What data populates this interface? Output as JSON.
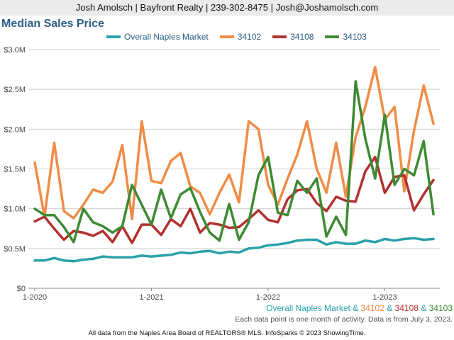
{
  "header": {
    "text": "Josh Amolsch | Bayfront Realty | 239-302-8475 | Josh@Joshamolsch.com"
  },
  "footer": {
    "legend_parts": [
      {
        "text": "Overall Naples Market",
        "color": "#2aa1a8"
      },
      {
        "text": " & ",
        "color": "#2aa1a8"
      },
      {
        "text": "34102",
        "color": "#f08c46"
      },
      {
        "text": " & ",
        "color": "#2aa1a8"
      },
      {
        "text": "34108",
        "color": "#b2312e"
      },
      {
        "text": " & ",
        "color": "#2aa1a8"
      },
      {
        "text": "34103",
        "color": "#3e8a33"
      }
    ],
    "note": "Each data point is one month of activity. Data is from July 3, 2023.",
    "attribution": "All data from the Naples Area Board of REALTORS® MLS. InfoSparks © 2023 ShowingTime."
  },
  "chart_data": {
    "type": "line",
    "title": "Median Sales Price",
    "x_labels": [
      "1-2020",
      "1-2021",
      "1-2022",
      "1-2023"
    ],
    "x_label_indices": [
      0,
      12,
      24,
      36
    ],
    "y_ticks": [
      "$0",
      "$0.5M",
      "$1.0M",
      "$1.5M",
      "$2.0M",
      "$2.5M",
      "$3.0M"
    ],
    "ylim": [
      0,
      3.0
    ],
    "y_unit": "$M",
    "grid": true,
    "legend_position": "top",
    "series": [
      {
        "name": "Overall Naples Market",
        "color": "#2aa1a8",
        "values": [
          0.35,
          0.35,
          0.38,
          0.35,
          0.34,
          0.36,
          0.37,
          0.4,
          0.39,
          0.39,
          0.39,
          0.41,
          0.4,
          0.41,
          0.42,
          0.45,
          0.44,
          0.46,
          0.47,
          0.44,
          0.46,
          0.45,
          0.5,
          0.51,
          0.54,
          0.55,
          0.57,
          0.6,
          0.61,
          0.61,
          0.55,
          0.58,
          0.56,
          0.56,
          0.6,
          0.58,
          0.62,
          0.6,
          0.62,
          0.63,
          0.61,
          0.62
        ]
      },
      {
        "name": "34102",
        "color": "#f08c46",
        "values": [
          1.58,
          0.9,
          1.83,
          0.97,
          0.88,
          1.05,
          1.24,
          1.2,
          1.34,
          1.8,
          0.87,
          2.1,
          1.35,
          1.32,
          1.6,
          1.7,
          1.28,
          1.2,
          0.93,
          1.2,
          1.43,
          1.08,
          2.1,
          2.0,
          1.3,
          1.05,
          1.38,
          1.68,
          2.1,
          1.5,
          1.2,
          1.83,
          1.15,
          1.9,
          2.28,
          2.78,
          2.12,
          2.28,
          1.22,
          1.98,
          2.55,
          2.07
        ]
      },
      {
        "name": "34108",
        "color": "#b2312e",
        "values": [
          0.84,
          0.9,
          0.75,
          0.61,
          0.72,
          0.7,
          0.66,
          0.72,
          0.58,
          0.78,
          0.57,
          0.8,
          0.8,
          0.67,
          0.87,
          0.78,
          1.0,
          0.7,
          0.82,
          0.8,
          0.76,
          0.77,
          0.87,
          0.98,
          0.86,
          0.83,
          1.12,
          1.23,
          1.25,
          1.07,
          0.97,
          1.15,
          1.1,
          1.09,
          1.47,
          1.65,
          1.2,
          1.4,
          1.42,
          0.98,
          1.18,
          1.36
        ]
      },
      {
        "name": "34103",
        "color": "#3e8a33",
        "values": [
          1.0,
          0.92,
          0.92,
          0.77,
          0.58,
          1.0,
          0.83,
          0.78,
          0.7,
          0.78,
          1.3,
          1.05,
          0.8,
          1.24,
          0.88,
          1.18,
          1.26,
          0.96,
          0.7,
          0.6,
          1.06,
          0.61,
          0.83,
          1.42,
          1.65,
          0.95,
          0.92,
          1.35,
          1.2,
          1.38,
          0.65,
          0.9,
          0.67,
          2.6,
          1.88,
          1.38,
          2.18,
          1.3,
          1.5,
          1.42,
          1.85,
          0.93
        ]
      }
    ]
  }
}
